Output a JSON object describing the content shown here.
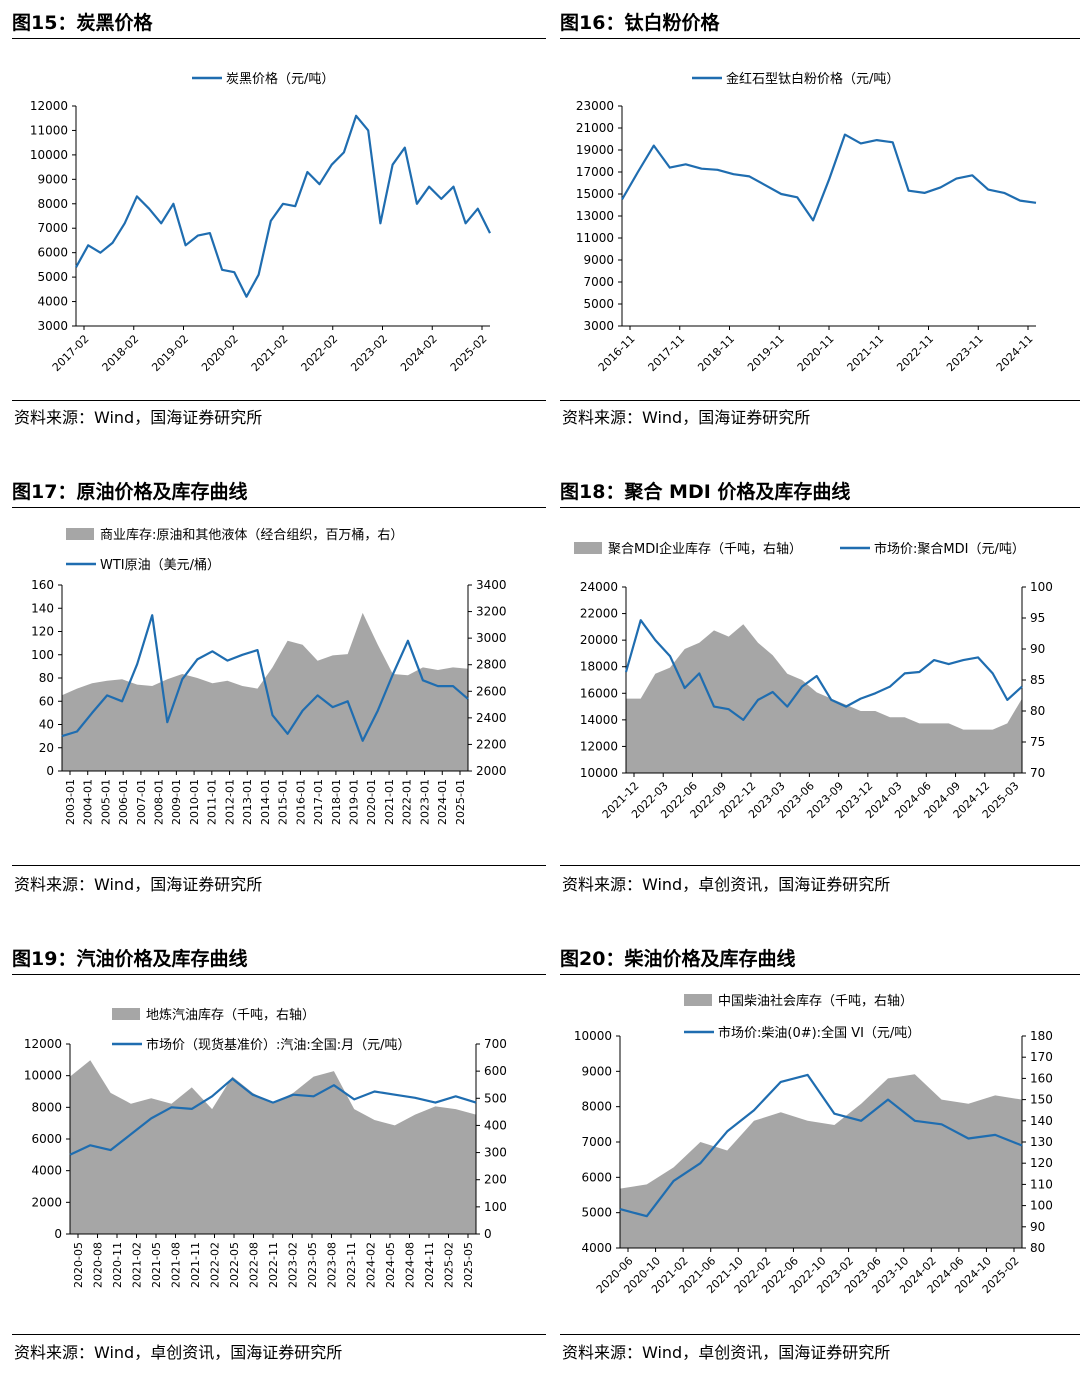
{
  "figures": [
    {
      "title": "图15：炭黑价格",
      "source": "资料来源：Wind，国海证券研究所",
      "legend": [
        {
          "label": "炭黑价格（元/吨）",
          "kind": "line"
        }
      ],
      "yticks": [
        "12000",
        "11000",
        "10000",
        "9000",
        "8000",
        "7000",
        "6000",
        "5000",
        "4000",
        "3000"
      ],
      "xticks": [
        "2017-02",
        "2018-02",
        "2019-02",
        "2020-02",
        "2021-02",
        "2022-02",
        "2023-02",
        "2024-02",
        "2025-02"
      ]
    },
    {
      "title": "图16：钛白粉价格",
      "source": "资料来源：Wind，国海证券研究所",
      "legend": [
        {
          "label": "金红石型钛白粉价格（元/吨）",
          "kind": "line"
        }
      ],
      "yticks": [
        "23000",
        "21000",
        "19000",
        "17000",
        "15000",
        "13000",
        "11000",
        "9000",
        "7000",
        "5000",
        "3000"
      ],
      "xticks": [
        "2016-11",
        "2017-11",
        "2018-11",
        "2019-11",
        "2020-11",
        "2021-11",
        "2022-11",
        "2023-11",
        "2024-11"
      ]
    },
    {
      "title": "图17：原油价格及库存曲线",
      "source": "资料来源：Wind，国海证券研究所",
      "legend": [
        {
          "label": "商业库存:原油和其他液体（经合组织，百万桶，右）",
          "kind": "area"
        },
        {
          "label": "WTI原油（美元/桶）",
          "kind": "line"
        }
      ],
      "yticks": [
        "160",
        "140",
        "120",
        "100",
        "80",
        "60",
        "40",
        "20",
        "0"
      ],
      "y2ticks": [
        "3400",
        "3200",
        "3000",
        "2800",
        "2600",
        "2400",
        "2200",
        "2000"
      ],
      "xticks": [
        "2003-01",
        "2004-01",
        "2005-01",
        "2006-01",
        "2007-01",
        "2008-01",
        "2009-01",
        "2010-01",
        "2011-01",
        "2012-01",
        "2013-01",
        "2014-01",
        "2015-01",
        "2016-01",
        "2017-01",
        "2018-01",
        "2019-01",
        "2020-01",
        "2021-01",
        "2022-01",
        "2023-01",
        "2024-01",
        "2025-01"
      ]
    },
    {
      "title": "图18：聚合 MDI 价格及库存曲线",
      "source": "资料来源：Wind，卓创资讯，国海证券研究所",
      "legend": [
        {
          "label": "聚合MDI企业库存（千吨，右轴）",
          "kind": "area"
        },
        {
          "label": "市场价:聚合MDI（元/吨）",
          "kind": "line"
        }
      ],
      "yticks": [
        "24000",
        "22000",
        "20000",
        "18000",
        "16000",
        "14000",
        "12000",
        "10000"
      ],
      "y2ticks": [
        "100",
        "95",
        "90",
        "85",
        "80",
        "75",
        "70"
      ],
      "xticks": [
        "2021-12",
        "2022-03",
        "2022-06",
        "2022-09",
        "2022-12",
        "2023-03",
        "2023-06",
        "2023-09",
        "2023-12",
        "2024-03",
        "2024-06",
        "2024-09",
        "2024-12",
        "2025-03"
      ]
    },
    {
      "title": "图19：汽油价格及库存曲线",
      "source": "资料来源：Wind，卓创资讯，国海证券研究所",
      "legend": [
        {
          "label": "地炼汽油库存（千吨，右轴）",
          "kind": "area"
        },
        {
          "label": "市场价（现货基准价）:汽油:全国:月（元/吨）",
          "kind": "line"
        }
      ],
      "yticks": [
        "12000",
        "10000",
        "8000",
        "6000",
        "4000",
        "2000",
        "0"
      ],
      "y2ticks": [
        "700",
        "600",
        "500",
        "400",
        "300",
        "200",
        "100",
        "0"
      ],
      "xticks": [
        "2020-05",
        "2020-08",
        "2020-11",
        "2021-02",
        "2021-05",
        "2021-08",
        "2021-11",
        "2022-02",
        "2022-05",
        "2022-08",
        "2022-11",
        "2023-02",
        "2023-05",
        "2023-08",
        "2023-11",
        "2024-02",
        "2024-05",
        "2024-08",
        "2024-11",
        "2025-02",
        "2025-05"
      ]
    },
    {
      "title": "图20：柴油价格及库存曲线",
      "source": "资料来源：Wind，卓创资讯，国海证券研究所",
      "legend": [
        {
          "label": "中国柴油社会库存（千吨，右轴）",
          "kind": "area"
        },
        {
          "label": "市场价:柴油(0#):全国 VI（元/吨）",
          "kind": "line"
        }
      ],
      "yticks": [
        "10000",
        "9000",
        "8000",
        "7000",
        "6000",
        "5000",
        "4000"
      ],
      "y2ticks": [
        "180",
        "170",
        "160",
        "150",
        "140",
        "130",
        "120",
        "110",
        "100",
        "90",
        "80"
      ],
      "xticks": [
        "2020-06",
        "2020-10",
        "2021-02",
        "2021-06",
        "2021-10",
        "2022-02",
        "2022-06",
        "2022-10",
        "2023-02",
        "2023-06",
        "2023-10",
        "2024-02",
        "2024-06",
        "2024-10",
        "2025-02"
      ]
    }
  ],
  "colors": {
    "line": "#1F6DB0",
    "area": "#A6A6A6",
    "text": "#000000"
  },
  "chart_data": [
    {
      "type": "line",
      "title": "图15：炭黑价格",
      "x": [
        "2017-01",
        "2017-04",
        "2017-07",
        "2017-10",
        "2018-01",
        "2018-04",
        "2018-07",
        "2018-10",
        "2019-01",
        "2019-04",
        "2019-07",
        "2019-10",
        "2020-01",
        "2020-04",
        "2020-07",
        "2020-10",
        "2021-01",
        "2021-04",
        "2021-07",
        "2021-10",
        "2022-01",
        "2022-04",
        "2022-07",
        "2022-10",
        "2023-01",
        "2023-04",
        "2023-07",
        "2023-10",
        "2024-01",
        "2024-04",
        "2024-07",
        "2024-10",
        "2025-01",
        "2025-04",
        "2025-06"
      ],
      "series": [
        {
          "name": "炭黑价格（元/吨）",
          "values": [
            5400,
            6300,
            6000,
            6400,
            7200,
            8300,
            7800,
            7200,
            8000,
            6300,
            6700,
            6800,
            5300,
            5200,
            4200,
            5100,
            7300,
            8000,
            7900,
            9300,
            8800,
            9600,
            10100,
            11600,
            11000,
            7200,
            9600,
            10300,
            8000,
            8700,
            8200,
            8700,
            7200,
            7800,
            6800
          ]
        }
      ],
      "ylim": [
        3000,
        12000
      ]
    },
    {
      "type": "line",
      "title": "图16：钛白粉价格",
      "x": [
        "2016-11",
        "2017-03",
        "2017-07",
        "2017-11",
        "2018-03",
        "2018-07",
        "2018-11",
        "2019-03",
        "2019-07",
        "2019-11",
        "2020-03",
        "2020-07",
        "2020-11",
        "2021-03",
        "2021-07",
        "2021-11",
        "2022-03",
        "2022-07",
        "2022-11",
        "2023-03",
        "2023-07",
        "2023-11",
        "2024-03",
        "2024-07",
        "2024-11",
        "2025-03",
        "2025-05"
      ],
      "series": [
        {
          "name": "金红石型钛白粉价格（元/吨）",
          "values": [
            14500,
            17000,
            19400,
            17400,
            17700,
            17300,
            17200,
            16800,
            16600,
            15800,
            15000,
            14700,
            12600,
            16300,
            20400,
            19600,
            19900,
            19700,
            15300,
            15100,
            15600,
            16400,
            16700,
            15400,
            15100,
            14400,
            14200
          ]
        }
      ],
      "ylim": [
        3000,
        23000
      ]
    },
    {
      "type": "line",
      "title": "图17：原油价格及库存曲线",
      "x": [
        "2003-01",
        "2004-01",
        "2005-01",
        "2006-01",
        "2007-01",
        "2008-01",
        "2008-07",
        "2009-01",
        "2010-01",
        "2011-01",
        "2012-01",
        "2013-01",
        "2014-01",
        "2014-07",
        "2015-01",
        "2016-01",
        "2017-01",
        "2018-01",
        "2019-01",
        "2020-01",
        "2020-04",
        "2021-01",
        "2022-01",
        "2022-06",
        "2023-01",
        "2024-01",
        "2025-01",
        "2025-05"
      ],
      "series": [
        {
          "name": "WTI原油（美元/桶）",
          "values": [
            30,
            34,
            50,
            65,
            60,
            92,
            134,
            42,
            79,
            96,
            103,
            95,
            100,
            104,
            48,
            32,
            52,
            65,
            55,
            60,
            26,
            52,
            83,
            112,
            78,
            73,
            73,
            62
          ]
        },
        {
          "name": "商业库存:原油和其他液体（经合组织，百万桶，右）",
          "axis": "right",
          "values": [
            2570,
            2620,
            2660,
            2680,
            2690,
            2650,
            2640,
            2690,
            2730,
            2700,
            2660,
            2680,
            2640,
            2620,
            2780,
            2980,
            2950,
            2830,
            2870,
            2880,
            3190,
            2950,
            2730,
            2720,
            2780,
            2760,
            2780,
            2770
          ]
        }
      ],
      "ylim": [
        0,
        160
      ],
      "y2lim": [
        2000,
        3400
      ]
    },
    {
      "type": "line",
      "title": "图18：聚合 MDI 价格及库存曲线",
      "x": [
        "2021-12",
        "2022-01",
        "2022-03",
        "2022-04",
        "2022-06",
        "2022-07",
        "2022-09",
        "2022-10",
        "2022-12",
        "2023-02",
        "2023-03",
        "2023-05",
        "2023-07",
        "2023-09",
        "2023-11",
        "2023-12",
        "2024-02",
        "2024-03",
        "2024-05",
        "2024-07",
        "2024-09",
        "2024-10",
        "2024-12",
        "2025-01",
        "2025-03",
        "2025-04",
        "2025-05",
        "2025-06"
      ],
      "series": [
        {
          "name": "市场价:聚合MDI（元/吨）",
          "values": [
            17600,
            21500,
            20000,
            18800,
            16400,
            17500,
            15000,
            14800,
            14000,
            15500,
            16100,
            15000,
            16500,
            17300,
            15500,
            15000,
            15600,
            16000,
            16500,
            17500,
            17600,
            18500,
            18200,
            18500,
            18700,
            17500,
            15500,
            16500
          ]
        },
        {
          "name": "聚合MDI企业库存（千吨，右轴）",
          "axis": "right",
          "values": [
            82,
            82,
            86,
            87,
            90,
            91,
            93,
            92,
            94,
            91,
            89,
            86,
            85,
            83,
            82,
            81,
            80,
            80,
            79,
            79,
            78,
            78,
            78,
            77,
            77,
            77,
            78,
            82
          ]
        }
      ],
      "ylim": [
        10000,
        24000
      ],
      "y2lim": [
        70,
        100
      ]
    },
    {
      "type": "line",
      "title": "图19：汽油价格及库存曲线",
      "x": [
        "2020-05",
        "2020-08",
        "2020-11",
        "2021-02",
        "2021-05",
        "2021-08",
        "2021-11",
        "2022-02",
        "2022-05",
        "2022-08",
        "2022-11",
        "2023-02",
        "2023-05",
        "2023-08",
        "2023-11",
        "2024-02",
        "2024-05",
        "2024-08",
        "2024-11",
        "2025-02",
        "2025-05"
      ],
      "series": [
        {
          "name": "市场价（现货基准价）:汽油:全国:月（元/吨）",
          "values": [
            5000,
            5600,
            5300,
            6300,
            7300,
            8000,
            7900,
            8700,
            9800,
            8800,
            8300,
            8800,
            8700,
            9400,
            8500,
            9000,
            8800,
            8600,
            8300,
            8700,
            8300
          ]
        },
        {
          "name": "地炼汽油库存（千吨，右轴）",
          "axis": "right",
          "values": [
            580,
            640,
            520,
            480,
            500,
            480,
            540,
            460,
            580,
            520,
            480,
            520,
            580,
            600,
            460,
            420,
            400,
            440,
            470,
            460,
            440
          ]
        }
      ],
      "ylim": [
        0,
        12000
      ],
      "y2lim": [
        0,
        700
      ]
    },
    {
      "type": "line",
      "title": "图20：柴油价格及库存曲线",
      "x": [
        "2020-06",
        "2020-10",
        "2021-02",
        "2021-06",
        "2021-10",
        "2022-02",
        "2022-06",
        "2022-10",
        "2023-02",
        "2023-06",
        "2023-10",
        "2024-02",
        "2024-06",
        "2024-10",
        "2025-02",
        "2025-06"
      ],
      "series": [
        {
          "name": "市场价:柴油(0#):全国 VI（元/吨）",
          "values": [
            5100,
            4900,
            5900,
            6400,
            7300,
            7900,
            8700,
            8900,
            7800,
            7600,
            8200,
            7600,
            7500,
            7100,
            7200,
            6900
          ]
        },
        {
          "name": "中国柴油社会库存（千吨，右轴）",
          "axis": "right",
          "values": [
            108,
            110,
            118,
            130,
            126,
            140,
            144,
            140,
            138,
            148,
            160,
            162,
            150,
            148,
            152,
            150
          ]
        }
      ],
      "ylim": [
        4000,
        10000
      ],
      "y2lim": [
        80,
        180
      ]
    }
  ]
}
